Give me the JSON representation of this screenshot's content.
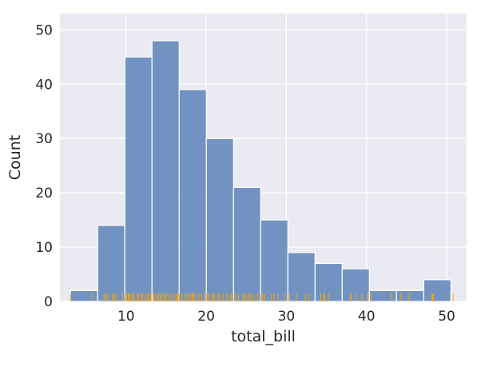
{
  "chart_data": {
    "type": "bar",
    "style": "histogram with rug plot",
    "xlabel": "total_bill",
    "ylabel": "Count",
    "xlim": [
      1.75,
      52.49
    ],
    "ylim": [
      0,
      53
    ],
    "xticks": [
      10,
      20,
      30,
      40,
      50
    ],
    "yticks": [
      0,
      10,
      20,
      30,
      40,
      50
    ],
    "grid": true,
    "bins": [
      {
        "x0": 3.07,
        "x1": 6.46,
        "count": 2
      },
      {
        "x0": 6.46,
        "x1": 9.85,
        "count": 14
      },
      {
        "x0": 9.85,
        "x1": 13.24,
        "count": 45
      },
      {
        "x0": 13.24,
        "x1": 16.63,
        "count": 48
      },
      {
        "x0": 16.63,
        "x1": 20.02,
        "count": 39
      },
      {
        "x0": 20.02,
        "x1": 23.41,
        "count": 30
      },
      {
        "x0": 23.41,
        "x1": 26.8,
        "count": 21
      },
      {
        "x0": 26.8,
        "x1": 30.19,
        "count": 15
      },
      {
        "x0": 30.19,
        "x1": 33.58,
        "count": 9
      },
      {
        "x0": 33.58,
        "x1": 36.97,
        "count": 7
      },
      {
        "x0": 36.97,
        "x1": 40.36,
        "count": 6
      },
      {
        "x0": 40.36,
        "x1": 43.75,
        "count": 2
      },
      {
        "x0": 43.75,
        "x1": 47.14,
        "count": 2
      },
      {
        "x0": 47.14,
        "x1": 50.53,
        "count": 4
      }
    ],
    "rug": [
      3.07,
      5.75,
      7.25,
      7.51,
      7.74,
      8.35,
      8.51,
      8.77,
      9.55,
      9.78,
      10.07,
      10.27,
      10.33,
      10.51,
      10.77,
      11.02,
      11.35,
      11.59,
      11.87,
      12.03,
      12.43,
      12.69,
      12.9,
      13.13,
      13.37,
      13.51,
      13.81,
      14.07,
      14.26,
      14.52,
      14.78,
      15.04,
      15.38,
      15.69,
      15.98,
      16.27,
      16.45,
      16.66,
      16.97,
      17.29,
      17.51,
      17.81,
      18.04,
      18.29,
      18.43,
      18.71,
      19.08,
      19.44,
      19.77,
      20.08,
      20.29,
      20.69,
      20.92,
      21.01,
      21.5,
      21.7,
      22.12,
      22.49,
      22.76,
      23.1,
      23.33,
      23.68,
      24.06,
      24.55,
      24.71,
      25.0,
      25.29,
      25.56,
      25.89,
      26.41,
      26.86,
      27.05,
      27.28,
      28.15,
      28.44,
      28.97,
      29.85,
      30.4,
      31.27,
      32.4,
      32.83,
      34.3,
      34.63,
      34.81,
      35.26,
      38.01,
      38.07,
      38.73,
      39.42,
      40.17,
      40.55,
      43.11,
      44.3,
      45.35,
      48.17,
      48.27,
      48.33,
      50.81
    ],
    "colors": {
      "bar_fill": "#6c8ebf",
      "bar_edge": "#ffffff",
      "rug": "#ffa500",
      "plot_background": "#eaeaf2",
      "grid": "#ffffff"
    }
  }
}
